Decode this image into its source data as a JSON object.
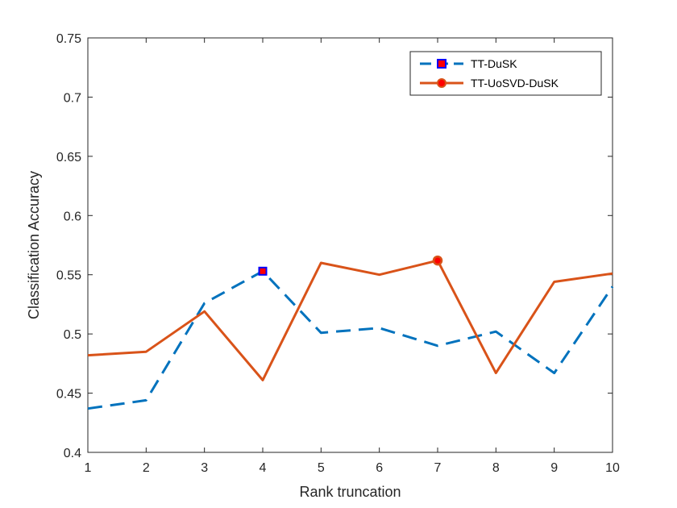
{
  "chart_data": {
    "type": "line",
    "title": "",
    "xlabel": "Rank truncation",
    "ylabel": "Classification Accuracy",
    "x": [
      1,
      2,
      3,
      4,
      5,
      6,
      7,
      8,
      9,
      10
    ],
    "xlim": [
      1,
      10
    ],
    "ylim": [
      0.4,
      0.75
    ],
    "xticks": [
      "1",
      "2",
      "3",
      "4",
      "5",
      "6",
      "7",
      "8",
      "9",
      "10"
    ],
    "yticks": [
      "0.4",
      "0.45",
      "0.5",
      "0.55",
      "0.6",
      "0.65",
      "0.7",
      "0.75"
    ],
    "grid": false,
    "legend_position": "top-right",
    "series": [
      {
        "name": "TT-DuSK",
        "values": [
          0.437,
          0.444,
          0.526,
          0.553,
          0.501,
          0.505,
          0.49,
          0.502,
          0.467,
          0.54
        ],
        "color": "#0072BD",
        "line_style": "dashed",
        "marker": "square",
        "marker_face": "#ff0000",
        "marker_edge": "#0000ff",
        "marker_at_index": 3
      },
      {
        "name": "TT-UoSVD-DuSK",
        "values": [
          0.482,
          0.485,
          0.519,
          0.461,
          0.56,
          0.55,
          0.562,
          0.467,
          0.544,
          0.551
        ],
        "color": "#D95319",
        "line_style": "solid",
        "marker": "circle",
        "marker_face": "#ff0000",
        "marker_edge": "#D95319",
        "marker_at_index": 6
      }
    ]
  }
}
